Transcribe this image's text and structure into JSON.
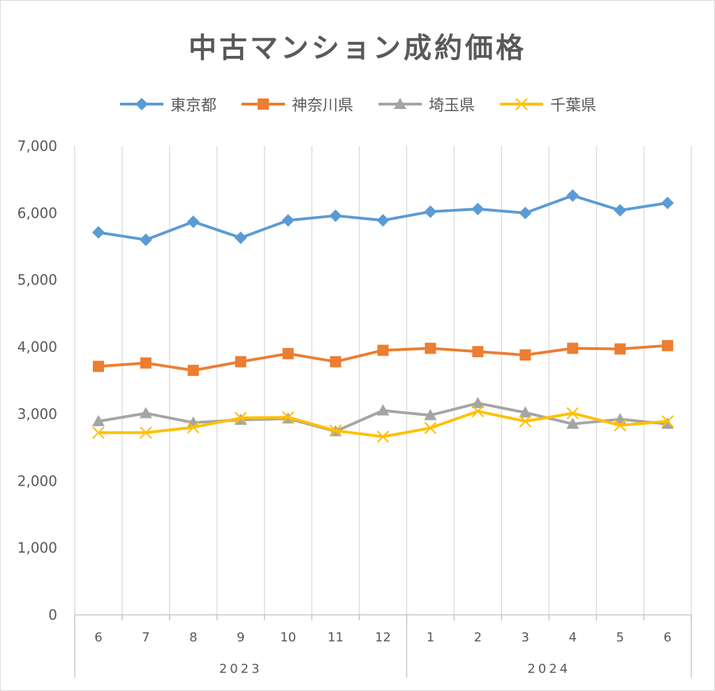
{
  "chart_data": {
    "type": "line",
    "title": "中古マンション成約価格",
    "categories": [
      "6",
      "7",
      "8",
      "9",
      "10",
      "11",
      "12",
      "1",
      "2",
      "3",
      "4",
      "5",
      "6"
    ],
    "groups": [
      {
        "label": "2023",
        "start": 0,
        "end": 6
      },
      {
        "label": "2024",
        "start": 7,
        "end": 12
      }
    ],
    "ylim": [
      0,
      7000
    ],
    "yticks": [
      "0",
      "1,000",
      "2,000",
      "3,000",
      "4,000",
      "5,000",
      "6,000",
      "7,000"
    ],
    "ytick_values": [
      0,
      1000,
      2000,
      3000,
      4000,
      5000,
      6000,
      7000
    ],
    "legend_position": "top",
    "grid": "vertical",
    "series": [
      {
        "name": "東京都",
        "color": "#5b9bd5",
        "marker": "diamond",
        "values": [
          5710,
          5600,
          5870,
          5630,
          5890,
          5960,
          5890,
          6020,
          6060,
          6000,
          6260,
          6040,
          6150
        ]
      },
      {
        "name": "神奈川県",
        "color": "#ed7d31",
        "marker": "square",
        "values": [
          3710,
          3760,
          3650,
          3780,
          3900,
          3780,
          3950,
          3980,
          3930,
          3880,
          3980,
          3970,
          4020
        ]
      },
      {
        "name": "埼玉県",
        "color": "#a5a5a5",
        "marker": "triangle",
        "values": [
          2890,
          3010,
          2870,
          2910,
          2930,
          2740,
          3050,
          2980,
          3160,
          3020,
          2850,
          2920,
          2850
        ]
      },
      {
        "name": "千葉県",
        "color": "#ffc000",
        "marker": "x",
        "values": [
          2720,
          2720,
          2800,
          2940,
          2950,
          2750,
          2660,
          2790,
          3040,
          2890,
          3010,
          2830,
          2890
        ]
      }
    ]
  }
}
